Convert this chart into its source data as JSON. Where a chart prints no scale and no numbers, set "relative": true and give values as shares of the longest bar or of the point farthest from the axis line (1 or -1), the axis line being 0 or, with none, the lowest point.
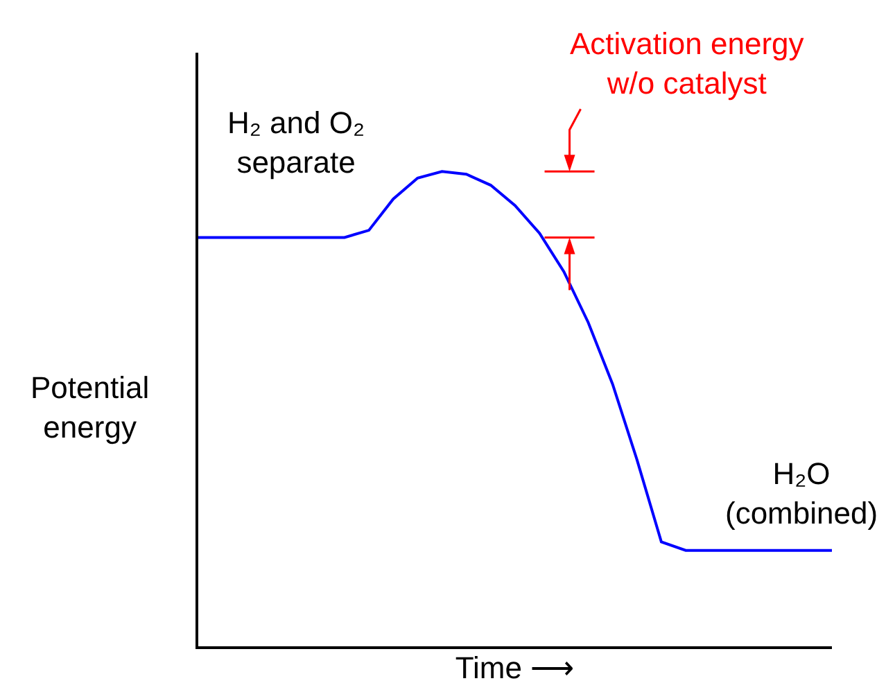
{
  "chart_data": {
    "type": "line",
    "relative": true,
    "xlabel": "Time ⟶",
    "ylabel": "Potential\nenergy",
    "categories": [
      null,
      null,
      null,
      null,
      null,
      null,
      null,
      null,
      null,
      null,
      null,
      null,
      null,
      null,
      null,
      null,
      null,
      null,
      null,
      null,
      null,
      null,
      null,
      null,
      null,
      null,
      null
    ],
    "series": [
      {
        "color": "#0000ff",
        "values": [
          0.861,
          0.861,
          0.861,
          0.861,
          0.861,
          0.861,
          0.861,
          0.876,
          0.942,
          0.986,
          1,
          0.994,
          0.971,
          0.928,
          0.87,
          0.789,
          0.682,
          0.552,
          0.393,
          0.22,
          0.202,
          0.202,
          0.202,
          0.202,
          0.202,
          0.202,
          0.202
        ]
      }
    ],
    "annotations": [
      "Activation energy\nw/o catalyst",
      "H₂ and O₂\nseparate",
      "H₂O\n(combined)"
    ],
    "marker": "none",
    "line_style": "solid"
  }
}
